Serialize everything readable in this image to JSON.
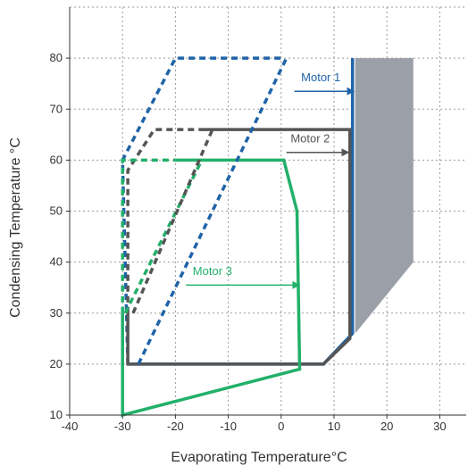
{
  "chart_data": {
    "type": "line",
    "title": "",
    "xlabel": "Evaporating Temperature°C",
    "ylabel": "Condensing Temperature °C",
    "xlim": [
      -40,
      35
    ],
    "ylim": [
      10,
      90
    ],
    "xticks": [
      -40,
      -30,
      -20,
      -10,
      0,
      10,
      20,
      30
    ],
    "yticks": [
      10,
      20,
      30,
      40,
      50,
      60,
      70,
      80
    ],
    "grid": true,
    "series": [
      {
        "name": "Motor 1",
        "color": "#1f64a8",
        "style": "solid",
        "points": [
          [
            13.5,
            80
          ],
          [
            13.5,
            26
          ],
          [
            8,
            20
          ],
          [
            -29,
            20
          ]
        ]
      },
      {
        "name": "Motor 1",
        "color": "#1f64a8",
        "style": "dashed",
        "points": [
          [
            -29,
            20
          ],
          [
            -30,
            60
          ],
          [
            -20,
            80
          ],
          [
            0,
            80
          ]
        ]
      },
      {
        "name": "Motor 2",
        "color": "#555555",
        "style": "solid",
        "points": [
          [
            -15,
            66
          ],
          [
            13,
            66
          ],
          [
            13,
            25
          ],
          [
            8,
            20
          ],
          [
            -29,
            20
          ],
          [
            -29,
            30
          ]
        ]
      },
      {
        "name": "Motor 2",
        "color": "#555555",
        "style": "dashed",
        "points": [
          [
            -29,
            30
          ],
          [
            -29,
            58
          ],
          [
            -24,
            66
          ],
          [
            -15,
            66
          ]
        ]
      },
      {
        "name": "Motor 3",
        "color": "#22b06a",
        "style": "solid",
        "points": [
          [
            -20,
            60
          ],
          [
            0.5,
            60
          ],
          [
            3,
            50
          ],
          [
            3.5,
            19
          ],
          [
            -30,
            10
          ],
          [
            -30,
            30
          ]
        ]
      },
      {
        "name": "Motor 3",
        "color": "#22b06a",
        "style": "dashed",
        "points": [
          [
            -30,
            30
          ],
          [
            -30,
            60
          ],
          [
            -20,
            60
          ]
        ]
      },
      {
        "name": "Motor 3",
        "color": "#22b06a",
        "style": "dashed",
        "points": [
          [
            -29.5,
            30
          ],
          [
            -15,
            60
          ]
        ]
      },
      {
        "name": "Motor 2",
        "color": "#555555",
        "style": "dashed",
        "points": [
          [
            -28,
            30
          ],
          [
            -13,
            66
          ]
        ]
      },
      {
        "name": "Motor 1",
        "color": "#1f64a8",
        "style": "dashed",
        "points": [
          [
            -27,
            20
          ],
          [
            1,
            80
          ]
        ]
      }
    ],
    "shaded_region": {
      "color": "#9a9fa8",
      "points": [
        [
          14,
          80
        ],
        [
          25,
          80
        ],
        [
          25,
          40
        ],
        [
          14,
          26
        ]
      ]
    },
    "annotations": [
      {
        "text": "Motor 1",
        "color": "#1f64a8",
        "label_at": [
          7.5,
          75.5
        ],
        "arrow_from": [
          2.5,
          73.5
        ],
        "arrow_to": [
          13.8,
          73.5
        ]
      },
      {
        "text": "Motor 2",
        "color": "#555555",
        "label_at": [
          5.5,
          63.5
        ],
        "arrow_from": [
          1,
          61.5
        ],
        "arrow_to": [
          12.8,
          61.5
        ]
      },
      {
        "text": "Motor 3",
        "color": "#22b06a",
        "label_at": [
          -13,
          37.5
        ],
        "arrow_from": [
          -18,
          35.5
        ],
        "arrow_to": [
          3.5,
          35.5
        ]
      }
    ]
  }
}
